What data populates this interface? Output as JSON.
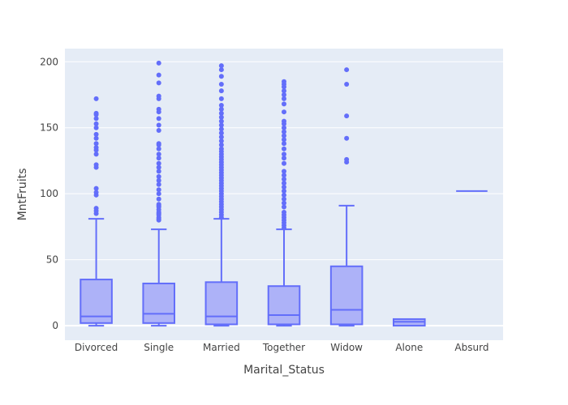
{
  "chart_data": {
    "type": "box",
    "xlabel": "Marital_Status",
    "ylabel": "MntFruits",
    "ylim": [
      -11,
      210
    ],
    "yticks": [
      0,
      50,
      100,
      150,
      200
    ],
    "grid": true,
    "legend": "none",
    "colors": {
      "plot_bg": "#E5ECF6",
      "grid": "#FFFFFF",
      "box_line": "#636EFA",
      "box_fill": "#A6ACF8",
      "text": "#444444"
    },
    "categories": [
      "Divorced",
      "Single",
      "Married",
      "Together",
      "Widow",
      "Alone",
      "Absurd"
    ],
    "boxes": [
      {
        "category": "Divorced",
        "lowerfence": 0,
        "q1": 2,
        "median": 7,
        "q3": 35,
        "upperfence": 81,
        "outliers": [
          85,
          87,
          89,
          99,
          101,
          104,
          120,
          122,
          130,
          133,
          135,
          138,
          142,
          145,
          150,
          153,
          157,
          160,
          161,
          172
        ]
      },
      {
        "category": "Single",
        "lowerfence": 0,
        "q1": 2,
        "median": 9,
        "q3": 32,
        "upperfence": 73,
        "outliers": [
          80,
          81,
          82,
          84,
          85,
          86,
          88,
          90,
          91,
          92,
          96,
          100,
          103,
          107,
          110,
          113,
          117,
          120,
          123,
          127,
          130,
          134,
          137,
          138,
          148,
          152,
          157,
          162,
          164,
          172,
          174,
          184,
          190,
          199
        ]
      },
      {
        "category": "Married",
        "lowerfence": 0,
        "q1": 1,
        "median": 7,
        "q3": 33,
        "upperfence": 81,
        "outliers": [
          82,
          84,
          86,
          88,
          90,
          92,
          94,
          96,
          98,
          100,
          102,
          104,
          106,
          108,
          110,
          112,
          114,
          116,
          118,
          120,
          122,
          124,
          126,
          128,
          130,
          132,
          134,
          137,
          140,
          143,
          146,
          149,
          152,
          155,
          158,
          161,
          164,
          167,
          172,
          178,
          183,
          189,
          194,
          197
        ]
      },
      {
        "category": "Together",
        "lowerfence": 0,
        "q1": 1,
        "median": 8,
        "q3": 30,
        "upperfence": 73,
        "outliers": [
          74,
          76,
          78,
          80,
          82,
          84,
          86,
          90,
          93,
          96,
          99,
          102,
          105,
          108,
          111,
          114,
          117,
          123,
          127,
          130,
          134,
          138,
          141,
          144,
          147,
          150,
          153,
          155,
          162,
          168,
          172,
          175,
          178,
          181,
          183,
          185
        ]
      },
      {
        "category": "Widow",
        "lowerfence": 0,
        "q1": 1,
        "median": 12,
        "q3": 45,
        "upperfence": 91,
        "outliers": [
          124,
          126,
          142,
          159,
          183,
          194
        ]
      },
      {
        "category": "Alone",
        "lowerfence": 0,
        "q1": 0,
        "median": 3,
        "q3": 5,
        "upperfence": 5,
        "outliers": []
      },
      {
        "category": "Absurd",
        "lowerfence": 102,
        "q1": 102,
        "median": 102,
        "q3": 102,
        "upperfence": 102,
        "outliers": []
      }
    ]
  }
}
